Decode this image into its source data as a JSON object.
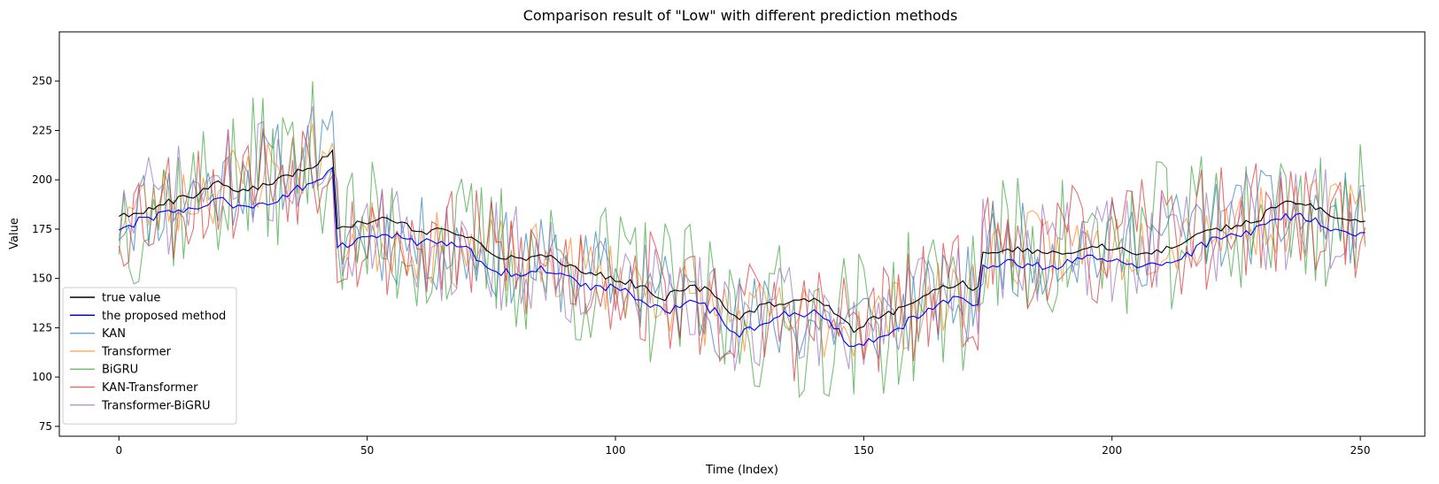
{
  "chart_data": {
    "type": "line",
    "title": "Comparison result of \"Low\" with different prediction methods",
    "xlabel": "Time (Index)",
    "ylabel": "Value",
    "xlim": [
      -12,
      263
    ],
    "ylim": [
      70,
      275
    ],
    "xticks": [
      0,
      50,
      100,
      150,
      200,
      250
    ],
    "yticks": [
      75,
      100,
      125,
      150,
      175,
      200,
      225,
      250
    ],
    "legend_position": "lower-left",
    "grid": false,
    "n_points": 252,
    "series": [
      {
        "name": "true value",
        "color": "#000000",
        "opacity": 1,
        "anchors": [
          [
            0,
            182
          ],
          [
            5,
            184
          ],
          [
            10,
            189
          ],
          [
            15,
            192
          ],
          [
            20,
            199
          ],
          [
            25,
            194
          ],
          [
            30,
            198
          ],
          [
            35,
            203
          ],
          [
            40,
            208
          ],
          [
            43,
            214
          ],
          [
            44,
            174
          ],
          [
            50,
            179
          ],
          [
            55,
            180
          ],
          [
            60,
            174
          ],
          [
            65,
            174
          ],
          [
            70,
            172
          ],
          [
            75,
            162
          ],
          [
            80,
            160
          ],
          [
            85,
            162
          ],
          [
            90,
            157
          ],
          [
            95,
            153
          ],
          [
            100,
            150
          ],
          [
            105,
            146
          ],
          [
            110,
            140
          ],
          [
            115,
            147
          ],
          [
            120,
            142
          ],
          [
            123,
            132
          ],
          [
            125,
            130
          ],
          [
            130,
            137
          ],
          [
            135,
            138
          ],
          [
            140,
            140
          ],
          [
            145,
            131
          ],
          [
            148,
            124
          ],
          [
            150,
            127
          ],
          [
            155,
            132
          ],
          [
            160,
            139
          ],
          [
            165,
            145
          ],
          [
            170,
            147
          ],
          [
            173,
            144
          ],
          [
            174,
            164
          ],
          [
            180,
            165
          ],
          [
            185,
            163
          ],
          [
            190,
            163
          ],
          [
            195,
            166
          ],
          [
            200,
            166
          ],
          [
            205,
            161
          ],
          [
            210,
            164
          ],
          [
            215,
            168
          ],
          [
            220,
            175
          ],
          [
            225,
            177
          ],
          [
            230,
            181
          ],
          [
            235,
            190
          ],
          [
            240,
            188
          ],
          [
            245,
            181
          ],
          [
            251,
            180
          ]
        ],
        "jitter": 1.8
      },
      {
        "name": "the proposed method",
        "color": "#0000ff",
        "opacity": 1,
        "anchors": [
          [
            0,
            175
          ],
          [
            5,
            180
          ],
          [
            10,
            183
          ],
          [
            15,
            186
          ],
          [
            20,
            190
          ],
          [
            25,
            186
          ],
          [
            30,
            188
          ],
          [
            35,
            194
          ],
          [
            40,
            200
          ],
          [
            43,
            205
          ],
          [
            44,
            166
          ],
          [
            50,
            170
          ],
          [
            55,
            172
          ],
          [
            60,
            168
          ],
          [
            65,
            168
          ],
          [
            70,
            166
          ],
          [
            75,
            154
          ],
          [
            80,
            152
          ],
          [
            85,
            155
          ],
          [
            90,
            150
          ],
          [
            95,
            145
          ],
          [
            100,
            145
          ],
          [
            105,
            140
          ],
          [
            110,
            133
          ],
          [
            115,
            140
          ],
          [
            120,
            133
          ],
          [
            123,
            125
          ],
          [
            125,
            122
          ],
          [
            130,
            128
          ],
          [
            135,
            132
          ],
          [
            140,
            133
          ],
          [
            145,
            123
          ],
          [
            148,
            115
          ],
          [
            150,
            118
          ],
          [
            155,
            121
          ],
          [
            160,
            130
          ],
          [
            165,
            137
          ],
          [
            170,
            140
          ],
          [
            173,
            137
          ],
          [
            174,
            157
          ],
          [
            180,
            158
          ],
          [
            185,
            156
          ],
          [
            190,
            157
          ],
          [
            195,
            160
          ],
          [
            200,
            160
          ],
          [
            205,
            155
          ],
          [
            210,
            158
          ],
          [
            215,
            162
          ],
          [
            220,
            169
          ],
          [
            225,
            171
          ],
          [
            230,
            175
          ],
          [
            235,
            182
          ],
          [
            240,
            180
          ],
          [
            245,
            175
          ],
          [
            251,
            172
          ]
        ],
        "jitter": 2.2
      },
      {
        "name": "KAN",
        "color": "#1f77b4",
        "opacity": 0.65,
        "anchors": [
          [
            0,
            182
          ],
          [
            43,
            214
          ],
          [
            44,
            174
          ],
          [
            75,
            162
          ],
          [
            100,
            150
          ],
          [
            125,
            130
          ],
          [
            150,
            127
          ],
          [
            173,
            144
          ],
          [
            174,
            164
          ],
          [
            200,
            166
          ],
          [
            230,
            181
          ],
          [
            251,
            180
          ]
        ],
        "jitter": 24,
        "seed": 11
      },
      {
        "name": "Transformer",
        "color": "#ff7f0e",
        "opacity": 0.65,
        "anchors": [
          [
            0,
            182
          ],
          [
            43,
            214
          ],
          [
            44,
            174
          ],
          [
            75,
            162
          ],
          [
            100,
            150
          ],
          [
            125,
            130
          ],
          [
            150,
            127
          ],
          [
            173,
            144
          ],
          [
            174,
            164
          ],
          [
            200,
            166
          ],
          [
            230,
            181
          ],
          [
            251,
            180
          ]
        ],
        "jitter": 20,
        "seed": 23
      },
      {
        "name": "BiGRU",
        "color": "#2ca02c",
        "opacity": 0.65,
        "anchors": [
          [
            0,
            182
          ],
          [
            43,
            214
          ],
          [
            44,
            174
          ],
          [
            75,
            162
          ],
          [
            100,
            150
          ],
          [
            125,
            130
          ],
          [
            150,
            127
          ],
          [
            173,
            144
          ],
          [
            174,
            164
          ],
          [
            200,
            166
          ],
          [
            230,
            181
          ],
          [
            251,
            180
          ]
        ],
        "jitter": 40,
        "seed": 37
      },
      {
        "name": "KAN-Transformer",
        "color": "#d62728",
        "opacity": 0.65,
        "anchors": [
          [
            0,
            182
          ],
          [
            43,
            214
          ],
          [
            44,
            174
          ],
          [
            75,
            162
          ],
          [
            100,
            150
          ],
          [
            125,
            130
          ],
          [
            150,
            127
          ],
          [
            173,
            144
          ],
          [
            174,
            164
          ],
          [
            200,
            166
          ],
          [
            230,
            181
          ],
          [
            251,
            180
          ]
        ],
        "jitter": 32,
        "seed": 53
      },
      {
        "name": "Transformer-BiGRU",
        "color": "#9467bd",
        "opacity": 0.65,
        "anchors": [
          [
            0,
            182
          ],
          [
            43,
            214
          ],
          [
            44,
            174
          ],
          [
            75,
            162
          ],
          [
            100,
            150
          ],
          [
            125,
            130
          ],
          [
            150,
            127
          ],
          [
            173,
            144
          ],
          [
            174,
            164
          ],
          [
            200,
            166
          ],
          [
            230,
            181
          ],
          [
            251,
            180
          ]
        ],
        "jitter": 28,
        "seed": 71
      }
    ]
  }
}
